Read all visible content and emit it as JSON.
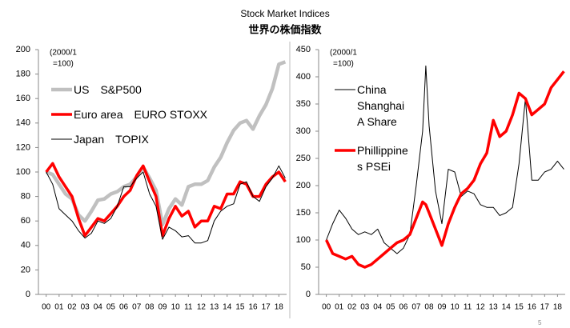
{
  "title": "Stock Market Indices",
  "subtitle": "世界の株価指数",
  "page_number": "5",
  "chart_data": [
    {
      "type": "line",
      "annotation": [
        "(2000/1",
        "=100)"
      ],
      "x": [
        2000,
        2000.5,
        2001,
        2001.5,
        2002,
        2002.5,
        2003,
        2003.5,
        2004,
        2004.5,
        2005,
        2005.5,
        2006,
        2006.5,
        2007,
        2007.5,
        2008,
        2008.5,
        2009,
        2009.5,
        2010,
        2010.5,
        2011,
        2011.5,
        2012,
        2012.5,
        2013,
        2013.5,
        2014,
        2014.5,
        2015,
        2015.5,
        2016,
        2016.5,
        2017,
        2017.5,
        2018,
        2018.5
      ],
      "series": [
        {
          "name": "US　S&P500",
          "color": "#c0c0c0",
          "values": [
            100,
            98,
            90,
            82,
            78,
            65,
            60,
            68,
            77,
            78,
            82,
            84,
            88,
            90,
            96,
            104,
            95,
            85,
            57,
            70,
            78,
            73,
            88,
            90,
            90,
            93,
            104,
            112,
            124,
            134,
            140,
            142,
            135,
            146,
            155,
            168,
            188,
            190
          ]
        },
        {
          "name": "Euro area　EURO STOXX",
          "color": "#ff0000",
          "values": [
            100,
            107,
            96,
            88,
            80,
            62,
            48,
            55,
            62,
            60,
            66,
            72,
            80,
            85,
            97,
            105,
            92,
            80,
            48,
            62,
            72,
            64,
            68,
            55,
            60,
            60,
            72,
            70,
            82,
            82,
            92,
            90,
            80,
            80,
            90,
            96,
            100,
            92
          ]
        },
        {
          "name": "Japan　TOPIX",
          "color": "#000000",
          "values": [
            100,
            90,
            70,
            65,
            60,
            52,
            46,
            50,
            60,
            58,
            62,
            72,
            88,
            88,
            95,
            100,
            82,
            72,
            45,
            55,
            52,
            47,
            48,
            42,
            42,
            44,
            60,
            68,
            72,
            74,
            90,
            92,
            80,
            76,
            88,
            95,
            105,
            95
          ]
        }
      ],
      "xlim": [
        1999.4,
        2018.6
      ],
      "xticks": [
        {
          "value": 2000,
          "label": "00"
        },
        {
          "value": 2001,
          "label": "01"
        },
        {
          "value": 2002,
          "label": "02"
        },
        {
          "value": 2003,
          "label": "03"
        },
        {
          "value": 2004,
          "label": "04"
        },
        {
          "value": 2005,
          "label": "05"
        },
        {
          "value": 2006,
          "label": "06"
        },
        {
          "value": 2007,
          "label": "07"
        },
        {
          "value": 2008,
          "label": "08"
        },
        {
          "value": 2009,
          "label": "09"
        },
        {
          "value": 2010,
          "label": "10"
        },
        {
          "value": 2011,
          "label": "11"
        },
        {
          "value": 2012,
          "label": "12"
        },
        {
          "value": 2013,
          "label": "13"
        },
        {
          "value": 2014,
          "label": "14"
        },
        {
          "value": 2015,
          "label": "15"
        },
        {
          "value": 2016,
          "label": "16"
        },
        {
          "value": 2017,
          "label": "17"
        },
        {
          "value": 2018,
          "label": "18"
        }
      ],
      "ylim": [
        0,
        200
      ],
      "yticks": [
        0,
        20,
        40,
        60,
        80,
        100,
        120,
        140,
        160,
        180,
        200
      ]
    },
    {
      "type": "line",
      "annotation": [
        "(2000/1",
        "=100)"
      ],
      "x": [
        2000,
        2000.5,
        2001,
        2001.5,
        2002,
        2002.5,
        2003,
        2003.5,
        2004,
        2004.5,
        2005,
        2005.5,
        2006,
        2006.5,
        2007,
        2007.5,
        2007.75,
        2008,
        2008.5,
        2009,
        2009.5,
        2010,
        2010.5,
        2011,
        2011.5,
        2012,
        2012.5,
        2013,
        2013.5,
        2014,
        2014.5,
        2015,
        2015.5,
        2016,
        2016.5,
        2017,
        2017.5,
        2018,
        2018.5
      ],
      "series": [
        {
          "name": "China Shanghai A Share",
          "color": "#000000",
          "values": [
            100,
            130,
            155,
            140,
            120,
            110,
            115,
            110,
            120,
            95,
            85,
            75,
            85,
            110,
            200,
            300,
            420,
            310,
            190,
            130,
            230,
            225,
            180,
            190,
            185,
            165,
            160,
            160,
            145,
            150,
            160,
            240,
            360,
            210,
            210,
            225,
            230,
            245,
            230
          ]
        },
        {
          "name": "Phillippines PSEi",
          "color": "#ff0000",
          "values": [
            100,
            75,
            70,
            65,
            70,
            55,
            50,
            55,
            65,
            75,
            85,
            95,
            100,
            110,
            140,
            170,
            165,
            150,
            120,
            90,
            130,
            160,
            185,
            195,
            210,
            240,
            260,
            320,
            290,
            300,
            330,
            370,
            360,
            330,
            340,
            350,
            380,
            395,
            410
          ]
        }
      ],
      "xlim": [
        1999.4,
        2018.6
      ],
      "xticks": [
        {
          "value": 2000,
          "label": "00"
        },
        {
          "value": 2001,
          "label": "01"
        },
        {
          "value": 2002,
          "label": "02"
        },
        {
          "value": 2003,
          "label": "03"
        },
        {
          "value": 2004,
          "label": "04"
        },
        {
          "value": 2005,
          "label": "05"
        },
        {
          "value": 2006,
          "label": "06"
        },
        {
          "value": 2007,
          "label": "07"
        },
        {
          "value": 2008,
          "label": "08"
        },
        {
          "value": 2009,
          "label": "09"
        },
        {
          "value": 2010,
          "label": "10"
        },
        {
          "value": 2011,
          "label": "11"
        },
        {
          "value": 2012,
          "label": "12"
        },
        {
          "value": 2013,
          "label": "13"
        },
        {
          "value": 2014,
          "label": "14"
        },
        {
          "value": 2015,
          "label": "15"
        },
        {
          "value": 2016,
          "label": "16"
        },
        {
          "value": 2017,
          "label": "17"
        },
        {
          "value": 2018,
          "label": "18"
        }
      ],
      "ylim": [
        0,
        450
      ],
      "yticks": [
        0,
        50,
        100,
        150,
        200,
        250,
        300,
        350,
        400,
        450
      ]
    }
  ]
}
